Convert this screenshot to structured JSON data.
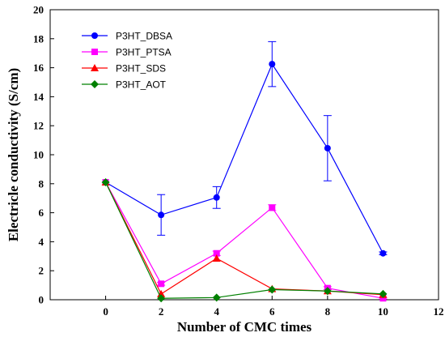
{
  "chart_data": {
    "type": "line",
    "title": "",
    "xlabel": "Number of CMC times",
    "ylabel": "Electricle conductivity (S/cm)",
    "xlim": [
      -2,
      12
    ],
    "ylim": [
      0,
      20
    ],
    "xticks": [
      0,
      2,
      4,
      6,
      8,
      10,
      12
    ],
    "yticks": [
      0,
      2,
      4,
      6,
      8,
      10,
      12,
      14,
      16,
      18,
      20
    ],
    "grid": false,
    "legend_position": "top-left",
    "series": [
      {
        "name": "P3HT_DBSA",
        "color": "#0000ff",
        "marker": "circle",
        "x": [
          0,
          2,
          4,
          6,
          8,
          10
        ],
        "y": [
          8.1,
          5.85,
          7.05,
          16.25,
          10.45,
          3.2
        ],
        "err": [
          0,
          1.4,
          0.75,
          1.55,
          2.25,
          0.1
        ]
      },
      {
        "name": "P3HT_PTSA",
        "color": "#ff00ff",
        "marker": "square",
        "x": [
          0,
          2,
          4,
          6,
          8,
          10
        ],
        "y": [
          8.1,
          1.1,
          3.2,
          6.35,
          0.8,
          0.1
        ],
        "err": [
          0,
          0.1,
          0.15,
          0.2,
          0.1,
          0.05
        ]
      },
      {
        "name": "P3HT_SDS",
        "color": "#ff0000",
        "marker": "triangle",
        "x": [
          0,
          2,
          4,
          6,
          8,
          10
        ],
        "y": [
          8.1,
          0.4,
          2.85,
          0.75,
          0.6,
          0.35
        ],
        "err": [
          0,
          0,
          0,
          0,
          0,
          0
        ]
      },
      {
        "name": "P3HT_AOT",
        "color": "#008000",
        "marker": "diamond",
        "x": [
          0,
          2,
          4,
          6,
          8,
          10
        ],
        "y": [
          8.1,
          0.1,
          0.15,
          0.7,
          0.6,
          0.4
        ],
        "err": [
          0,
          0,
          0,
          0,
          0,
          0
        ]
      }
    ]
  }
}
